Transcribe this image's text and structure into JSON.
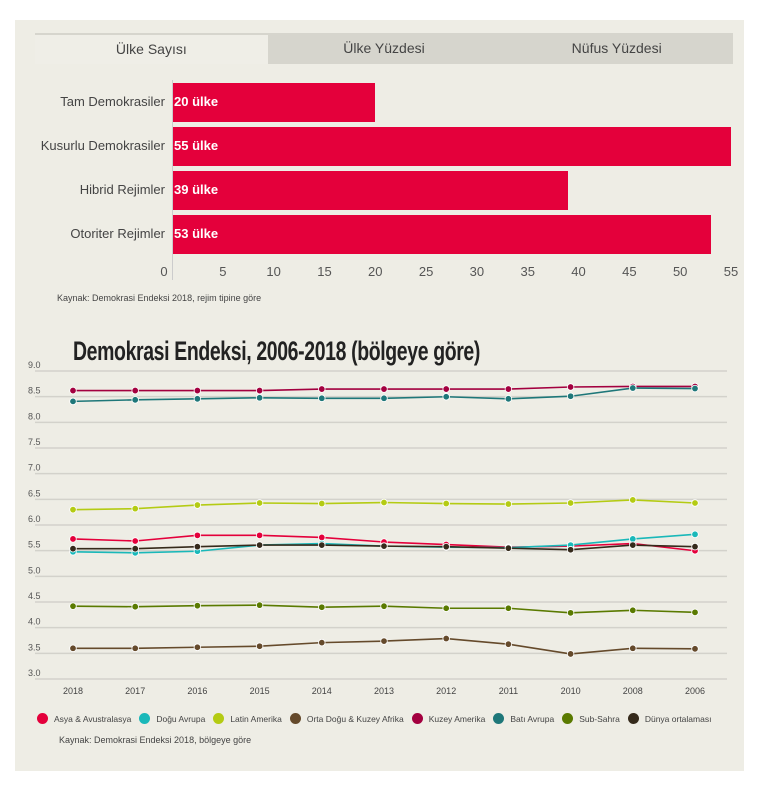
{
  "tabs": [
    "Ülke Sayısı",
    "Ülke Yüzdesi",
    "Nüfus Yüzdesi"
  ],
  "chart_data": [
    {
      "type": "bar",
      "orientation": "horizontal",
      "categories": [
        "Tam Demokrasiler",
        "Kusurlu Demokrasiler",
        "Hibrid Rejimler",
        "Otoriter Rejimler"
      ],
      "values": [
        20,
        55,
        39,
        53
      ],
      "labels": [
        "20 ülke",
        "55 ülke",
        "39 ülke",
        "53 ülke"
      ],
      "xlim": [
        0,
        55
      ],
      "xticks": [
        0,
        5,
        10,
        15,
        20,
        25,
        30,
        35,
        40,
        45,
        50,
        55
      ],
      "color": "#e4003b",
      "source": "Kaynak: Demokrasi Endeksi 2018, rejim tipine göre"
    },
    {
      "type": "line",
      "title": "Demokrasi Endeksi, 2006-2018 (bölgeye göre)",
      "x": [
        "2018",
        "2017",
        "2016",
        "2015",
        "2014",
        "2013",
        "2012",
        "2011",
        "2010",
        "2008",
        "2006"
      ],
      "ylim": [
        3.0,
        9.0
      ],
      "yticks": [
        "3.0",
        "3.5",
        "4.0",
        "4.5",
        "5.0",
        "5.5",
        "6.0",
        "6.5",
        "7.0",
        "7.5",
        "8.0",
        "8.5",
        "9.0"
      ],
      "grid": true,
      "legend": "bottom",
      "series": [
        {
          "name": "Asya & Avustralasya",
          "color": "#e4003b",
          "values": [
            5.67,
            5.63,
            5.74,
            5.74,
            5.7,
            5.61,
            5.56,
            5.51,
            5.53,
            5.58,
            5.44
          ]
        },
        {
          "name": "Doğu Avrupa",
          "color": "#1ab8b9",
          "values": [
            5.42,
            5.4,
            5.43,
            5.55,
            5.58,
            5.53,
            5.51,
            5.5,
            5.55,
            5.67,
            5.76
          ]
        },
        {
          "name": "Latin Amerika",
          "color": "#b4cb13",
          "values": [
            6.24,
            6.26,
            6.33,
            6.37,
            6.36,
            6.38,
            6.36,
            6.35,
            6.37,
            6.43,
            6.37
          ]
        },
        {
          "name": "Orta Doğu & Kuzey Afrika",
          "color": "#654a2b",
          "values": [
            3.54,
            3.54,
            3.56,
            3.58,
            3.65,
            3.68,
            3.73,
            3.62,
            3.43,
            3.54,
            3.53
          ]
        },
        {
          "name": "Kuzey Amerika",
          "color": "#a3003f",
          "values": [
            8.56,
            8.56,
            8.56,
            8.56,
            8.59,
            8.59,
            8.59,
            8.59,
            8.63,
            8.64,
            8.64
          ]
        },
        {
          "name": "Batı Avrupa",
          "color": "#1e7779",
          "values": [
            8.35,
            8.38,
            8.4,
            8.42,
            8.41,
            8.41,
            8.44,
            8.4,
            8.45,
            8.61,
            8.6
          ]
        },
        {
          "name": "Sub-Sahra",
          "color": "#5a7a00",
          "values": [
            4.36,
            4.35,
            4.37,
            4.38,
            4.34,
            4.36,
            4.32,
            4.32,
            4.23,
            4.28,
            4.24
          ]
        },
        {
          "name": "Dünya ortalaması",
          "color": "#352a1b",
          "values": [
            5.48,
            5.48,
            5.52,
            5.55,
            5.55,
            5.53,
            5.52,
            5.49,
            5.46,
            5.55,
            5.52
          ]
        }
      ],
      "source": "Kaynak: Demokrasi Endeksi 2018, bölgeye göre"
    }
  ]
}
